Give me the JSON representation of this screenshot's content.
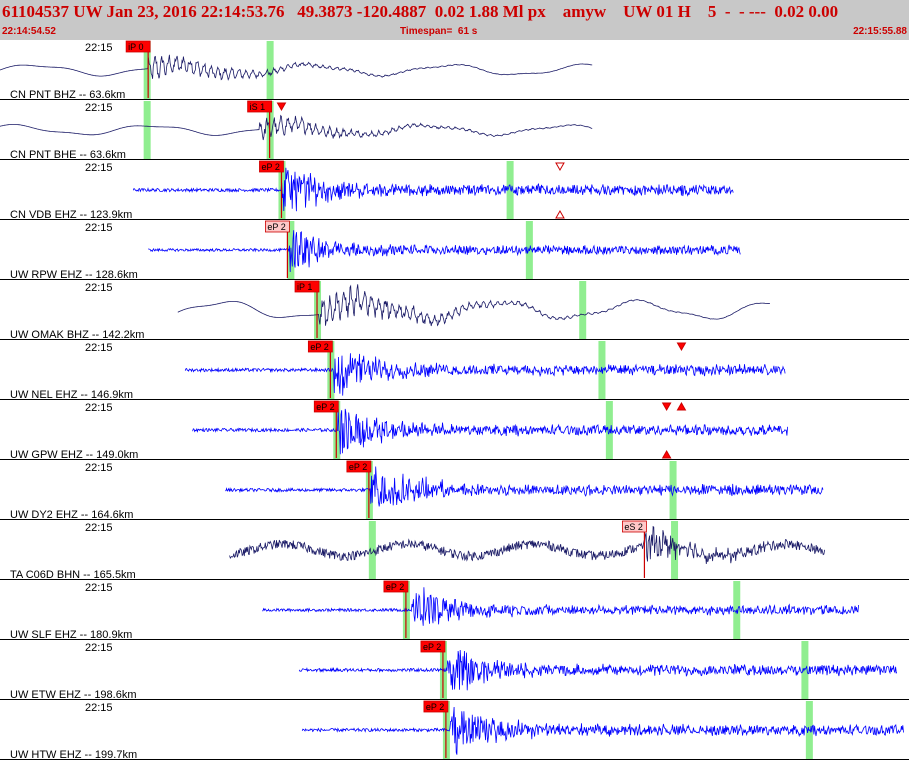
{
  "header": {
    "title": "61104537 UW Jan 23, 2016 22:14:53.76   49.3873 -120.4887  0.02 1.88 Ml px    amyw    UW 01 H    5  -  - ---  0.02 0.00",
    "start_time": "22:14:54.52",
    "timespan": "Timespan=  61 s",
    "end_time": "22:15:55.88"
  },
  "colors": {
    "trace_blue": "#0000ff",
    "trace_navy": "#1a1a66",
    "pick_box": "#ff0000",
    "pick_box_light": "#ffc8c8",
    "marker_green": "#90ee90",
    "header_bg": "#c8c8c8",
    "header_text": "#cc0000"
  },
  "chart_data": {
    "type": "line",
    "x_unit": "seconds after 22:14:54.52",
    "x_range": [
      0,
      61.36
    ],
    "time_tick": "22:15",
    "traces": [
      {
        "label": "CN PNT BHZ -- 63.6km",
        "tick": "22:15",
        "color": "navy",
        "style": "long",
        "start": 0,
        "end": 40,
        "onset": 10,
        "amp": 0.55,
        "picks": [
          {
            "label": "iP 0",
            "t": 10,
            "filled": true
          }
        ],
        "green": [
          9.9,
          18.2
        ],
        "arrows": []
      },
      {
        "label": "CN PNT BHE -- 63.6km",
        "tick": "22:15",
        "color": "navy",
        "style": "long",
        "start": 0,
        "end": 40,
        "onset": 17.5,
        "amp": 0.5,
        "picks": [
          {
            "label": "iS 1",
            "t": 18.2,
            "filled": true
          }
        ],
        "green": [
          9.9,
          18.2
        ],
        "arrows": [
          {
            "t": 19,
            "dir": "down",
            "filled": true
          }
        ]
      },
      {
        "label": "CN VDB EHZ -- 123.9km",
        "tick": "22:15",
        "color": "blue",
        "style": "noise",
        "start": 9,
        "end": 49.5,
        "onset": 19,
        "amp": 0.95,
        "picks": [
          {
            "label": "eP 2",
            "t": 19,
            "filled": true
          }
        ],
        "green": [
          19,
          34.4
        ],
        "arrows": [
          {
            "t": 37.8,
            "dir": "down",
            "filled": false
          },
          {
            "t": 37.8,
            "dir": "up",
            "filled": false,
            "lower": true
          }
        ]
      },
      {
        "label": "UW RPW EHZ -- 128.6km",
        "tick": "22:15",
        "color": "blue",
        "style": "noise",
        "start": 10,
        "end": 50,
        "onset": 19.5,
        "amp": 0.8,
        "picks": [
          {
            "label": "eP 2",
            "t": 19.4,
            "filled": false
          }
        ],
        "green": [
          19.6,
          35.7
        ],
        "arrows": []
      },
      {
        "label": "UW OMAK BHZ -- 142.2km",
        "tick": "22:15",
        "color": "navy",
        "style": "long",
        "start": 12,
        "end": 52,
        "onset": 21.5,
        "amp": 0.9,
        "picks": [
          {
            "label": "iP 1",
            "t": 21.4,
            "filled": true
          }
        ],
        "green": [
          21.4,
          39.3
        ],
        "arrows": []
      },
      {
        "label": "UW NEL EHZ -- 146.9km",
        "tick": "22:15",
        "color": "blue",
        "style": "noise",
        "start": 12.5,
        "end": 53,
        "onset": 22.5,
        "amp": 0.95,
        "picks": [
          {
            "label": "eP 2",
            "t": 22.3,
            "filled": true
          }
        ],
        "green": [
          22.3,
          40.6
        ],
        "arrows": [
          {
            "t": 46,
            "dir": "down",
            "filled": true
          }
        ]
      },
      {
        "label": "UW GPW EHZ -- 149.0km",
        "tick": "22:15",
        "color": "blue",
        "style": "noise",
        "start": 13,
        "end": 53.2,
        "onset": 22.8,
        "amp": 0.95,
        "picks": [
          {
            "label": "eP 2",
            "t": 22.7,
            "filled": true
          }
        ],
        "green": [
          22.7,
          41.1
        ],
        "arrows": [
          {
            "t": 45,
            "dir": "down",
            "filled": true
          },
          {
            "t": 46,
            "dir": "up",
            "filled": true
          },
          {
            "t": 45,
            "dir": "up",
            "filled": true,
            "lower": true
          }
        ]
      },
      {
        "label": "UW DY2 EHZ -- 164.6km",
        "tick": "22:15",
        "color": "blue",
        "style": "noise",
        "start": 15.2,
        "end": 55.6,
        "onset": 25,
        "amp": 0.95,
        "picks": [
          {
            "label": "eP 2",
            "t": 24.9,
            "filled": true
          }
        ],
        "green": [
          24.9,
          45.4
        ],
        "arrows": []
      },
      {
        "label": "TA C06D BHN -- 165.5km",
        "tick": "22:15",
        "color": "navy",
        "style": "noisy_long",
        "start": 15.5,
        "end": 55.7,
        "onset": 43.5,
        "amp": 0.75,
        "picks": [
          {
            "label": "eS 2",
            "t": 43.5,
            "filled": false
          }
        ],
        "green": [
          25.1,
          45.5
        ],
        "arrows": []
      },
      {
        "label": "UW SLF EHZ -- 180.9km",
        "tick": "22:15",
        "color": "blue",
        "style": "noise",
        "start": 17.7,
        "end": 58,
        "onset": 27.8,
        "amp": 0.85,
        "picks": [
          {
            "label": "eP 2",
            "t": 27.4,
            "filled": true
          }
        ],
        "green": [
          27.4,
          49.7
        ],
        "arrows": []
      },
      {
        "label": "UW ETW EHZ -- 198.6km",
        "tick": "22:15",
        "color": "blue",
        "style": "noise",
        "start": 20.2,
        "end": 60.6,
        "onset": 30.2,
        "amp": 0.95,
        "picks": [
          {
            "label": "eP 2",
            "t": 29.9,
            "filled": true
          }
        ],
        "green": [
          29.9,
          54.3
        ],
        "arrows": []
      },
      {
        "label": "UW HTW EHZ -- 199.7km",
        "tick": "22:15",
        "color": "blue",
        "style": "noise",
        "start": 20.4,
        "end": 61,
        "onset": 30.4,
        "amp": 0.95,
        "picks": [
          {
            "label": "eP 2",
            "t": 30.1,
            "filled": true
          }
        ],
        "green": [
          30.1,
          54.6
        ],
        "arrows": []
      }
    ]
  }
}
